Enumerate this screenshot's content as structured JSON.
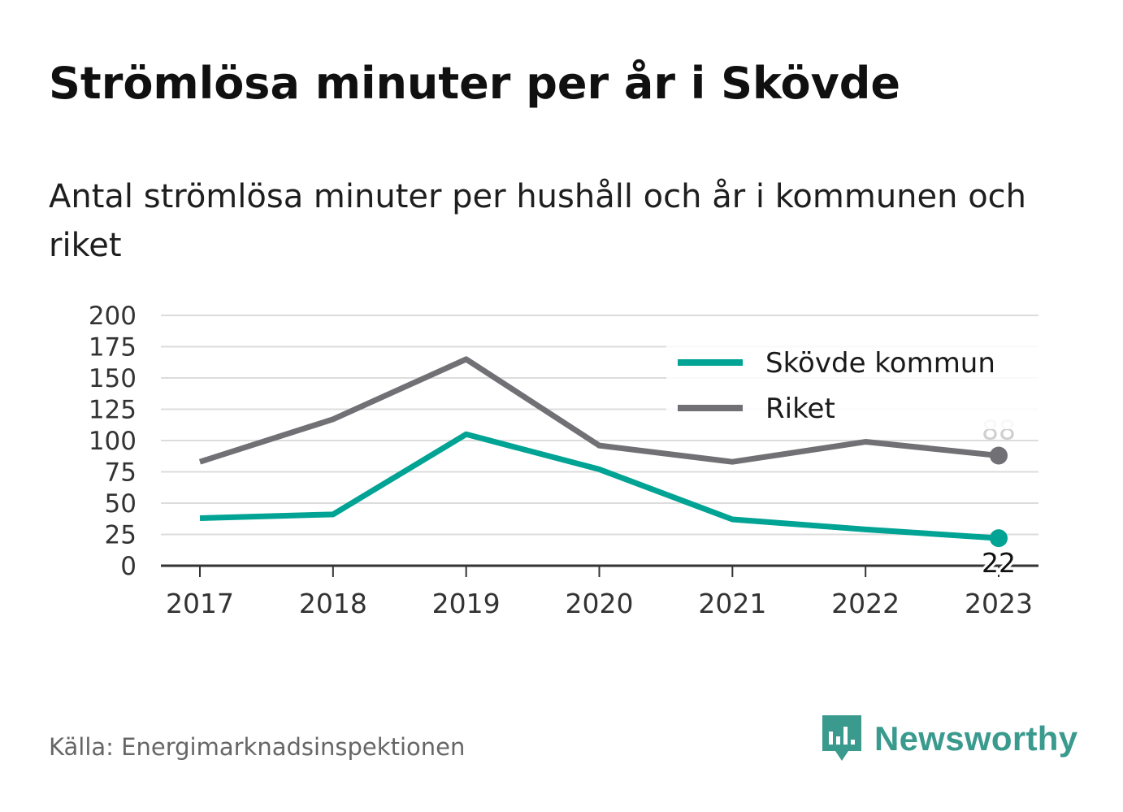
{
  "title": "Strömlösa minuter per år i Skövde",
  "subtitle": "Antal strömlösa minuter per hushåll och år i kommunen och riket",
  "source": "Källa: Energimarknadsinspektionen",
  "brand": {
    "name": "Newsworthy",
    "icon": "newsworthy-logo-icon",
    "color": "#3a9a8e"
  },
  "chart_data": {
    "type": "line",
    "x": [
      "2017",
      "2018",
      "2019",
      "2020",
      "2021",
      "2022",
      "2023"
    ],
    "ylim": [
      0,
      200
    ],
    "yticks": [
      "0",
      "25",
      "50",
      "75",
      "100",
      "125",
      "150",
      "175",
      "200"
    ],
    "grid": true,
    "legend": "top-right",
    "xlabel": "",
    "ylabel": "",
    "series": [
      {
        "name": "Skövde kommun",
        "color": "#00a394",
        "values": [
          38,
          41,
          105,
          77,
          37,
          29,
          22
        ],
        "end_label": "22"
      },
      {
        "name": "Riket",
        "color": "#707075",
        "values": [
          83,
          117,
          165,
          96,
          83,
          99,
          88
        ],
        "end_label": "88"
      }
    ]
  }
}
